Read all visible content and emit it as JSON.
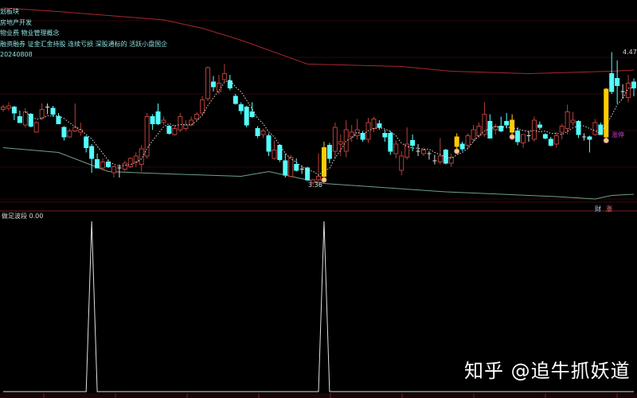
{
  "info_lines": [
    "划板块",
    "房地产开发",
    "物业费 物业管理概念",
    "融资融券 证金汇金持股 连续亏损 深股通标的 活跃小盘国企",
    "20240808"
  ],
  "indicator_label": "做足波段 0.00",
  "bottom_tags": {
    "left": "财",
    "right": "涨"
  },
  "watermark": "知乎 @追牛抓妖道",
  "colors": {
    "up": "#b8403a",
    "down": "#54ffff",
    "limit_up": "#ffcc00",
    "ma_dotted": "#e8d8d8",
    "long_ma": "#a8282e",
    "green_ma": "#6fa08a",
    "limit_label": "#d040d0",
    "indicator": "#e0e0e0"
  },
  "chart_data": [
    {
      "type": "candlestick",
      "panel": "price",
      "high_label": "4.47",
      "low_label": "3.36",
      "limit_up_label": "涨停",
      "ylim": [
        3.2,
        4.9
      ],
      "candles": [
        [
          3.99,
          4.03,
          3.97,
          4.01
        ],
        [
          4.0,
          4.05,
          3.98,
          4.02
        ],
        [
          4.01,
          4.02,
          3.9,
          3.96
        ],
        [
          3.93,
          3.98,
          3.88,
          3.88
        ],
        [
          3.86,
          4.0,
          3.84,
          3.97
        ],
        [
          3.95,
          3.96,
          3.84,
          3.85
        ],
        [
          3.8,
          3.89,
          3.8,
          3.88
        ],
        [
          3.92,
          4.04,
          3.9,
          3.99
        ],
        [
          4.01,
          4.04,
          3.95,
          4.0
        ],
        [
          4.0,
          4.02,
          3.93,
          3.95
        ],
        [
          3.93,
          3.96,
          3.87,
          3.87
        ],
        [
          3.84,
          3.85,
          3.73,
          3.76
        ],
        [
          3.76,
          3.83,
          3.75,
          3.81
        ],
        [
          3.81,
          4.04,
          3.8,
          3.84
        ],
        [
          3.8,
          3.88,
          3.77,
          3.82
        ],
        [
          3.76,
          3.77,
          3.63,
          3.67
        ],
        [
          3.68,
          3.7,
          3.46,
          3.58
        ],
        [
          3.57,
          3.62,
          3.5,
          3.5
        ],
        [
          3.5,
          3.58,
          3.48,
          3.55
        ],
        [
          3.55,
          3.57,
          3.5,
          3.51
        ],
        [
          3.46,
          3.52,
          3.42,
          3.51
        ],
        [
          3.49,
          3.53,
          3.42,
          3.5
        ],
        [
          3.49,
          3.56,
          3.47,
          3.54
        ],
        [
          3.51,
          3.59,
          3.5,
          3.58
        ],
        [
          3.55,
          3.63,
          3.51,
          3.6
        ],
        [
          3.53,
          3.69,
          3.47,
          3.66
        ],
        [
          3.6,
          3.96,
          3.58,
          3.93
        ],
        [
          3.93,
          3.95,
          3.82,
          3.87
        ],
        [
          3.97,
          4.04,
          3.86,
          3.87
        ],
        [
          3.88,
          3.93,
          3.86,
          3.9
        ],
        [
          3.85,
          3.86,
          3.78,
          3.79
        ],
        [
          3.78,
          3.86,
          3.77,
          3.83
        ],
        [
          3.82,
          3.96,
          3.8,
          3.93
        ],
        [
          3.83,
          3.9,
          3.81,
          3.86
        ],
        [
          3.86,
          3.93,
          3.85,
          3.9
        ],
        [
          3.91,
          3.97,
          3.89,
          3.95
        ],
        [
          3.96,
          4.1,
          3.94,
          4.07
        ],
        [
          4.08,
          4.35,
          4.06,
          4.34
        ],
        [
          4.22,
          4.27,
          4.14,
          4.18
        ],
        [
          4.14,
          4.28,
          4.12,
          4.21
        ],
        [
          4.24,
          4.37,
          4.22,
          4.29
        ],
        [
          4.23,
          4.28,
          4.15,
          4.17
        ],
        [
          4.1,
          4.12,
          4.03,
          4.04
        ],
        [
          4.03,
          4.05,
          3.95,
          3.98
        ],
        [
          4.01,
          4.02,
          3.84,
          3.86
        ],
        [
          3.97,
          4.05,
          3.92,
          3.93
        ],
        [
          3.83,
          3.85,
          3.75,
          3.77
        ],
        [
          3.78,
          3.83,
          3.75,
          3.81
        ],
        [
          3.77,
          3.79,
          3.6,
          3.64
        ],
        [
          3.58,
          3.73,
          3.57,
          3.65
        ],
        [
          3.69,
          3.7,
          3.55,
          3.57
        ],
        [
          3.56,
          3.62,
          3.42,
          3.44
        ],
        [
          3.43,
          3.61,
          3.42,
          3.59
        ],
        [
          3.53,
          3.58,
          3.47,
          3.48
        ],
        [
          3.48,
          3.52,
          3.45,
          3.49
        ],
        [
          3.5,
          3.51,
          3.39,
          3.4
        ],
        [
          3.38,
          3.41,
          3.36,
          3.4
        ],
        [
          3.4,
          3.62,
          3.39,
          3.43
        ],
        [
          3.43,
          3.72,
          3.42,
          3.67
        ],
        [
          3.69,
          3.71,
          3.54,
          3.58
        ],
        [
          3.64,
          3.88,
          3.58,
          3.84
        ],
        [
          3.7,
          3.78,
          3.6,
          3.72
        ],
        [
          3.64,
          3.9,
          3.59,
          3.82
        ],
        [
          3.76,
          3.86,
          3.72,
          3.8
        ],
        [
          3.77,
          3.91,
          3.74,
          3.82
        ],
        [
          3.79,
          3.81,
          3.72,
          3.74
        ],
        [
          3.74,
          3.92,
          3.71,
          3.88
        ],
        [
          3.83,
          3.93,
          3.8,
          3.91
        ],
        [
          3.87,
          3.9,
          3.82,
          3.84
        ],
        [
          3.79,
          3.82,
          3.72,
          3.76
        ],
        [
          3.79,
          3.81,
          3.61,
          3.64
        ],
        [
          3.62,
          3.73,
          3.58,
          3.7
        ],
        [
          3.48,
          3.64,
          3.44,
          3.6
        ],
        [
          3.59,
          3.84,
          3.57,
          3.7
        ],
        [
          3.73,
          3.78,
          3.64,
          3.69
        ],
        [
          3.64,
          3.7,
          3.6,
          3.64
        ],
        [
          3.62,
          3.67,
          3.6,
          3.65
        ],
        [
          3.62,
          3.64,
          3.57,
          3.61
        ],
        [
          3.56,
          3.61,
          3.53,
          3.56
        ],
        [
          3.55,
          3.75,
          3.53,
          3.6
        ],
        [
          3.65,
          3.66,
          3.53,
          3.54
        ],
        [
          3.54,
          3.62,
          3.51,
          3.59
        ],
        [
          3.68,
          3.79,
          3.66,
          3.76
        ],
        [
          3.7,
          3.72,
          3.64,
          3.66
        ],
        [
          3.69,
          3.79,
          3.66,
          3.77
        ],
        [
          3.74,
          3.86,
          3.72,
          3.82
        ],
        [
          3.77,
          3.88,
          3.75,
          3.85
        ],
        [
          3.78,
          4.05,
          3.76,
          3.95
        ],
        [
          3.89,
          3.95,
          3.75,
          3.75
        ],
        [
          3.82,
          3.87,
          3.78,
          3.85
        ],
        [
          3.85,
          3.93,
          3.8,
          3.81
        ],
        [
          3.89,
          3.96,
          3.83,
          3.86
        ],
        [
          3.8,
          3.95,
          3.78,
          3.9
        ],
        [
          3.81,
          3.84,
          3.69,
          3.72
        ],
        [
          3.71,
          3.78,
          3.67,
          3.78
        ],
        [
          3.77,
          3.81,
          3.72,
          3.77
        ],
        [
          3.74,
          3.93,
          3.72,
          3.9
        ],
        [
          3.86,
          3.89,
          3.82,
          3.84
        ],
        [
          3.78,
          3.79,
          3.74,
          3.75
        ],
        [
          3.74,
          3.76,
          3.68,
          3.69
        ],
        [
          3.7,
          3.8,
          3.67,
          3.77
        ],
        [
          3.8,
          3.87,
          3.74,
          3.85
        ],
        [
          3.83,
          4.03,
          3.78,
          3.97
        ],
        [
          3.88,
          3.97,
          3.85,
          3.9
        ],
        [
          3.89,
          3.9,
          3.75,
          3.78
        ],
        [
          3.76,
          3.79,
          3.73,
          3.76
        ],
        [
          3.76,
          3.77,
          3.63,
          3.74
        ],
        [
          3.78,
          3.91,
          3.77,
          3.88
        ],
        [
          3.86,
          3.88,
          3.78,
          3.78
        ],
        [
          3.76,
          4.17,
          3.75,
          4.16
        ],
        [
          4.29,
          4.47,
          4.12,
          4.14
        ],
        [
          4.25,
          4.4,
          4.04,
          4.19
        ],
        [
          4.14,
          4.2,
          4.08,
          4.14
        ],
        [
          4.09,
          4.28,
          4.05,
          4.21
        ],
        [
          4.22,
          4.25,
          4.1,
          4.17
        ]
      ],
      "limit_up_candles": [
        58,
        82,
        92,
        109
      ],
      "long_ma": [
        [
          0,
          4.84
        ],
        [
          10,
          4.81
        ],
        [
          29,
          4.74
        ],
        [
          36,
          4.67
        ],
        [
          43,
          4.57
        ],
        [
          55,
          4.37
        ],
        [
          72,
          4.35
        ],
        [
          81,
          4.31
        ],
        [
          95,
          4.29
        ],
        [
          110,
          4.31
        ],
        [
          114,
          4.32
        ]
      ],
      "green_ma": [
        [
          0,
          3.67
        ],
        [
          10,
          3.63
        ],
        [
          19,
          3.47
        ],
        [
          30,
          3.45
        ],
        [
          43,
          3.43
        ],
        [
          48,
          3.47
        ],
        [
          58,
          3.37
        ],
        [
          80,
          3.3
        ],
        [
          100,
          3.26
        ],
        [
          107,
          3.24
        ],
        [
          110,
          3.27
        ],
        [
          114,
          3.28
        ]
      ]
    },
    {
      "type": "line",
      "panel": "indicator",
      "ylim": [
        0,
        1
      ],
      "spikes": [
        16,
        58
      ]
    }
  ]
}
